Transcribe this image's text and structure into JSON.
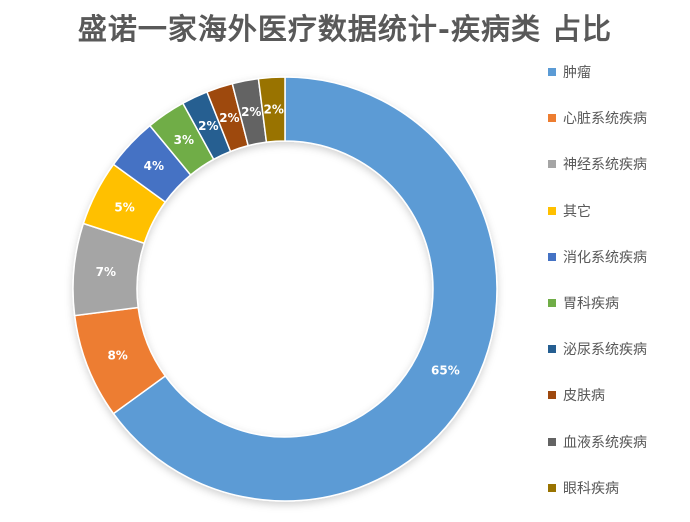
{
  "chart_data": {
    "type": "pie",
    "title": "盛诺一家海外医疗数据统计-疾病类 占比",
    "donut": true,
    "legend_position": "right",
    "categories": [
      "肿瘤",
      "心脏系统疾病",
      "神经系统疾病",
      "其它",
      "消化系统疾病",
      "胃科疾病",
      "泌尿系统疾病",
      "皮肤病",
      "血液系统疾病",
      "眼科疾病"
    ],
    "values": [
      65,
      8,
      7,
      5,
      4,
      3,
      2,
      2,
      2,
      2
    ],
    "value_labels": [
      "65%",
      "8%",
      "7%",
      "5%",
      "4%",
      "3%",
      "2%",
      "2%",
      "2%",
      "2%"
    ],
    "colors": [
      "#5B9BD5",
      "#ED7D31",
      "#A5A5A5",
      "#FFC000",
      "#4472C4",
      "#70AD47",
      "#255E91",
      "#9E480E",
      "#636363",
      "#997300"
    ]
  }
}
